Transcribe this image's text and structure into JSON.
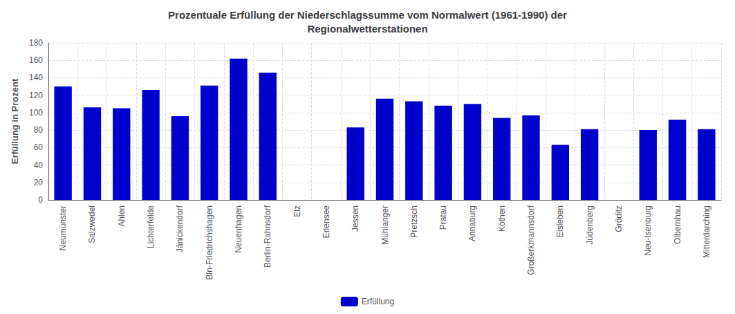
{
  "chart_data": {
    "type": "bar",
    "title": "Prozentuale Erfüllung der Niederschlagssumme vom Normalwert (1961-1990) der\nRegionalwetterstationen",
    "ylabel": "Erfüllung in Prozent",
    "categories": [
      "Neumünster",
      "Salzwedel",
      "Ahlen",
      "Lichterfelde",
      "Jänickendorf",
      "Bln-Friedrichshagen",
      "Neuenhagen",
      "Berlin-Rahnsdorf",
      "Elz",
      "Erlensee",
      "Jessen",
      "Mühlanger",
      "Pretzsch",
      "Pratau",
      "Annaburg",
      "Köthen",
      "Großerkmannsdorf",
      "Eisleben",
      "Jüdenberg",
      "Gröditz",
      "Neu-Isenburg",
      "Olbernhau",
      "Mitterdarching"
    ],
    "series": [
      {
        "name": "Erfüllung",
        "color": "#0000CC",
        "values": [
          130,
          106,
          105,
          126,
          96,
          131,
          162,
          146,
          0,
          0,
          83,
          116,
          113,
          108,
          110,
          94,
          97,
          63,
          81,
          0,
          80,
          92,
          81
        ]
      }
    ],
    "ylim": [
      0,
      180
    ],
    "yticks": [
      0,
      20,
      40,
      60,
      80,
      100,
      120,
      140,
      160,
      180
    ],
    "grid": true,
    "legend": "bottom"
  }
}
